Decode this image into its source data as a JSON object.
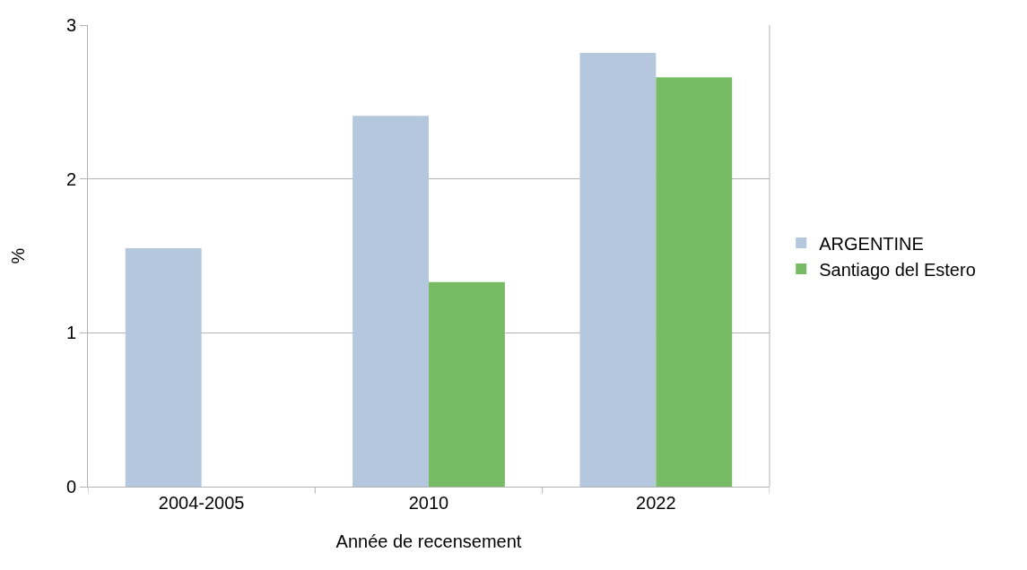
{
  "chart_data": {
    "type": "bar",
    "xlabel": "Année de recensement",
    "ylabel": "%",
    "categories": [
      "2004-2005",
      "2010",
      "2022"
    ],
    "series": [
      {
        "name": "ARGENTINE",
        "color": "#b4c7dc",
        "values": [
          1.55,
          2.41,
          2.82
        ]
      },
      {
        "name": "Santiago del Estero",
        "color": "#77bc65",
        "values": [
          null,
          1.33,
          2.66
        ]
      }
    ],
    "ylim": [
      0,
      3
    ],
    "yticks": [
      0,
      1,
      2,
      3
    ],
    "grid": "y",
    "legend": "right"
  }
}
